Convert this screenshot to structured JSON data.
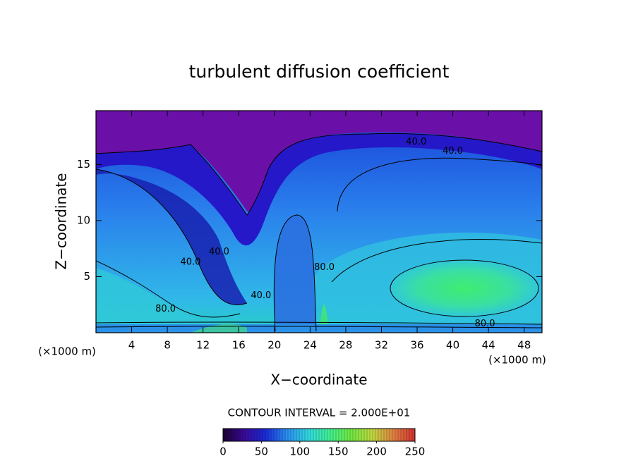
{
  "chart_data": {
    "type": "contour",
    "title": "turbulent diffusion coefficient",
    "x_label": "X−coordinate",
    "y_label": "Z−coordinate",
    "x_unit_label": "(×1000 m)",
    "y_unit_label": "(×1000 m)",
    "xlim": [
      0,
      50
    ],
    "xticks": [
      4,
      8,
      12,
      16,
      20,
      24,
      28,
      32,
      36,
      40,
      44,
      48
    ],
    "ylim": [
      0,
      19.8
    ],
    "yticks": [
      5,
      10,
      15
    ],
    "contour_interval_text": "CONTOUR INTERVAL = 2.000E+01",
    "contour_labels": [
      {
        "value": 40,
        "label": "40.0",
        "x": 35.9,
        "y": 17.0
      },
      {
        "value": 40,
        "label": "40.0",
        "x": 40.0,
        "y": 16.2
      },
      {
        "value": 40,
        "label": "40.0",
        "x": 13.8,
        "y": 7.2
      },
      {
        "value": 40,
        "label": "40.0",
        "x": 10.6,
        "y": 6.3
      },
      {
        "value": 40,
        "label": "40.0",
        "x": 18.5,
        "y": 3.3
      },
      {
        "value": 80,
        "label": "80.0",
        "x": 25.6,
        "y": 5.8
      },
      {
        "value": 80,
        "label": "80.0",
        "x": 7.8,
        "y": 2.1
      },
      {
        "value": 80,
        "label": "80.0",
        "x": 43.6,
        "y": 0.8
      }
    ],
    "colorbar": {
      "lim": [
        0,
        250
      ],
      "ticks": [
        0,
        50,
        100,
        150,
        200,
        250
      ],
      "colors": [
        "#1a0030",
        "#3a0a9a",
        "#1a2ad8",
        "#2a8ef0",
        "#30d8e0",
        "#40f090",
        "#70e840",
        "#c0d840",
        "#e08040",
        "#d03030"
      ]
    }
  }
}
